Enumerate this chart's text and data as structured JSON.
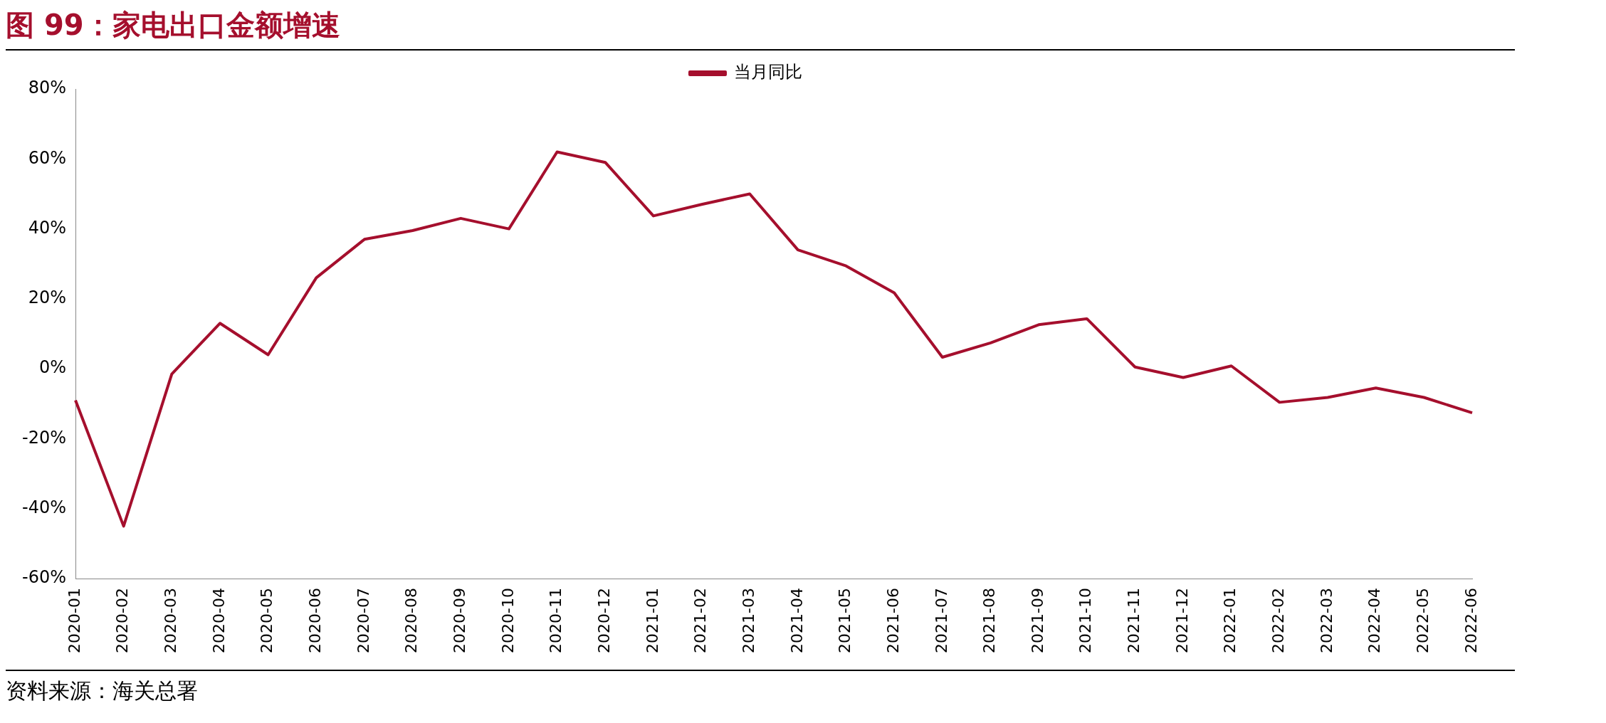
{
  "chart_data": {
    "type": "line",
    "title": "图 99：家电出口金额增速",
    "categories": [
      "2020-01",
      "2020-02",
      "2020-03",
      "2020-04",
      "2020-05",
      "2020-06",
      "2020-07",
      "2020-08",
      "2020-09",
      "2020-10",
      "2020-11",
      "2020-12",
      "2021-01",
      "2021-02",
      "2021-03",
      "2021-04",
      "2021-05",
      "2021-06",
      "2021-07",
      "2021-08",
      "2021-09",
      "2021-10",
      "2021-11",
      "2021-12",
      "2022-01",
      "2022-02",
      "2022-03",
      "2022-04",
      "2022-05",
      "2022-06"
    ],
    "series": [
      {
        "name": "当月同比",
        "color": "#a50f2d",
        "values": [
          -9,
          -45,
          -1.5,
          13,
          4,
          26,
          37,
          39.5,
          43,
          40,
          62,
          59,
          43.7,
          47,
          50,
          34,
          29.4,
          21.7,
          3.3,
          7.4,
          12.6,
          14.3,
          0.5,
          -2.5,
          0.8,
          -9.6,
          -8.2,
          -5.5,
          -8.2,
          -12.6
        ]
      }
    ],
    "ylim": [
      -60,
      80
    ],
    "yticks": [
      {
        "value": -60,
        "label": "-60%"
      },
      {
        "value": -40,
        "label": "-40%"
      },
      {
        "value": -20,
        "label": "-20%"
      },
      {
        "value": 0,
        "label": "0%"
      },
      {
        "value": 20,
        "label": "20%"
      },
      {
        "value": 40,
        "label": "40%"
      },
      {
        "value": 60,
        "label": "60%"
      },
      {
        "value": 80,
        "label": "80%"
      }
    ],
    "grid": false,
    "legend": "top",
    "marker": "none",
    "line_style": "solid",
    "annotations": [
      "资料来源：海关总署"
    ]
  }
}
